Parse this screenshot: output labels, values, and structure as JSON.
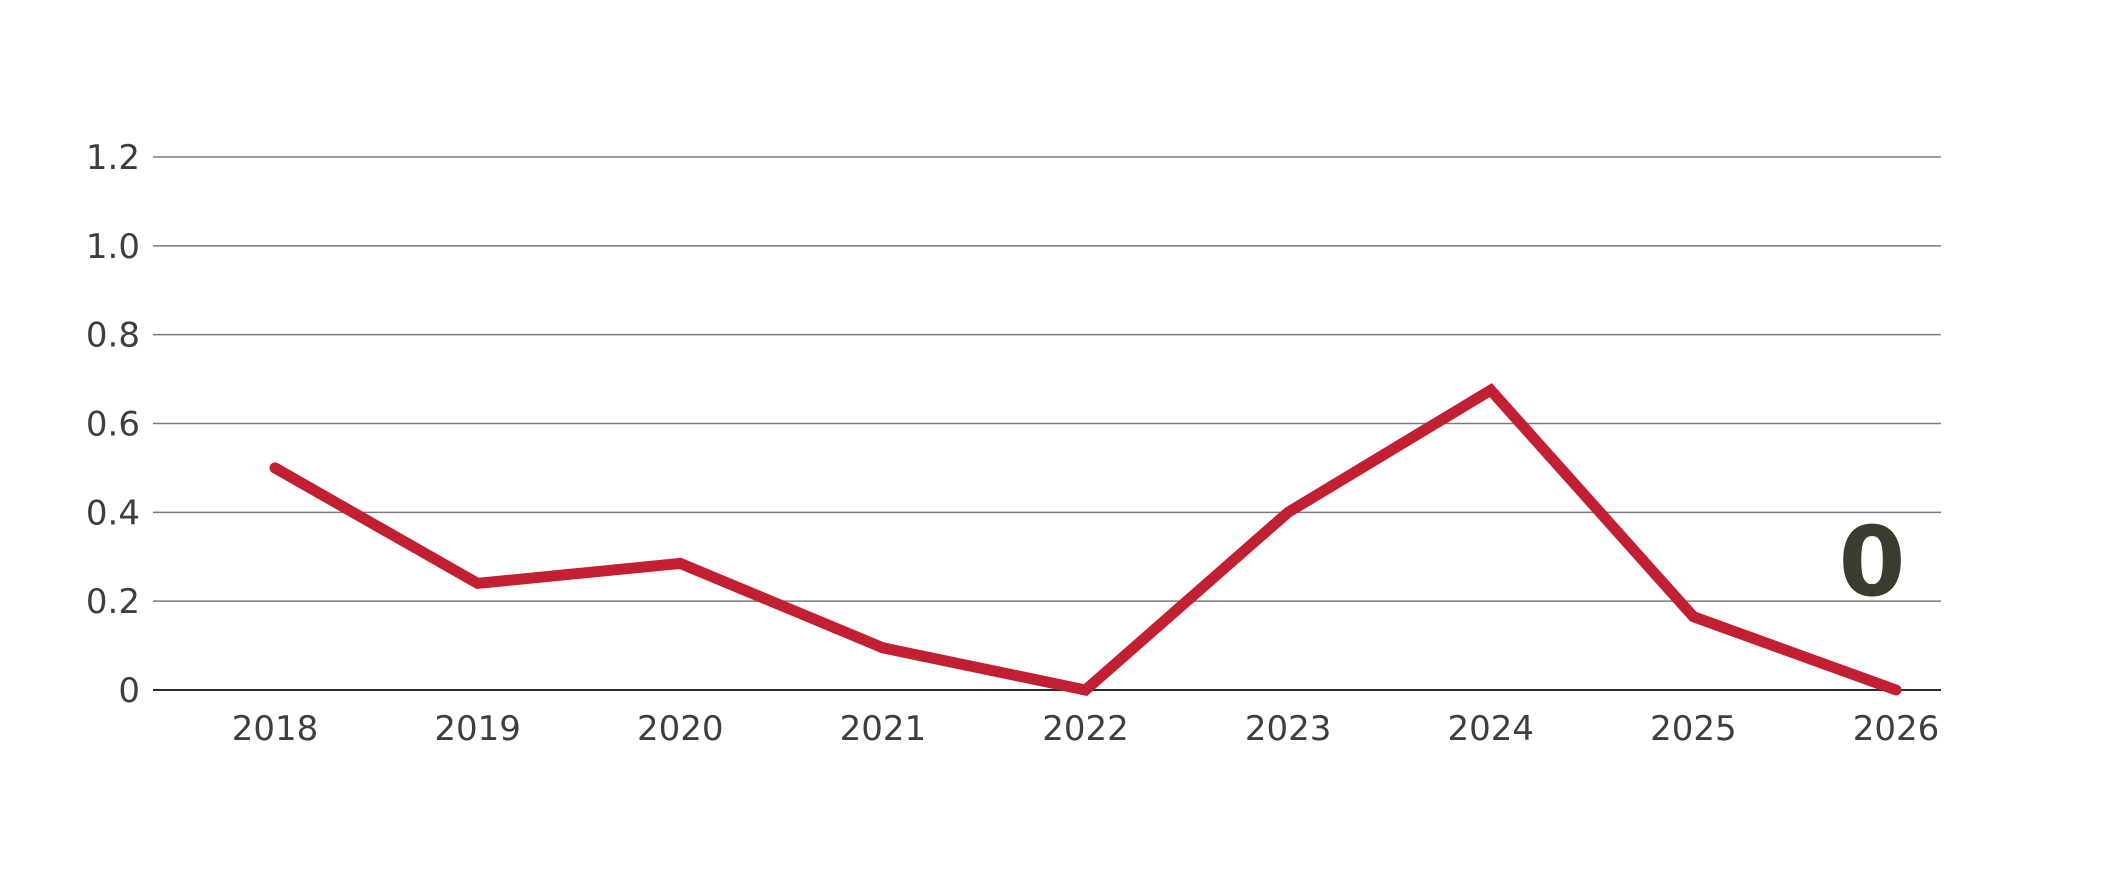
{
  "chart_data": {
    "type": "line",
    "title": "",
    "xlabel": "",
    "ylabel": "",
    "x": [
      "2018",
      "2019",
      "2020",
      "2021",
      "2022",
      "2023",
      "2024",
      "2025",
      "2026"
    ],
    "series": [
      {
        "values": [
          0.5,
          0.24,
          0.285,
          0.095,
          0.0,
          0.4,
          0.675,
          0.165,
          0.0
        ]
      }
    ],
    "ylim": [
      0,
      1.2
    ],
    "y_ticks": [
      "0",
      "0.2",
      "0.4",
      "0.6",
      "0.8",
      "1.0",
      "1.2"
    ],
    "grid": true,
    "end_label": "0",
    "colors": {
      "line": "#c21f33",
      "grid": "#7a7a7a",
      "axis": "#2b2b2b",
      "end_label": "#3c3b30"
    }
  }
}
